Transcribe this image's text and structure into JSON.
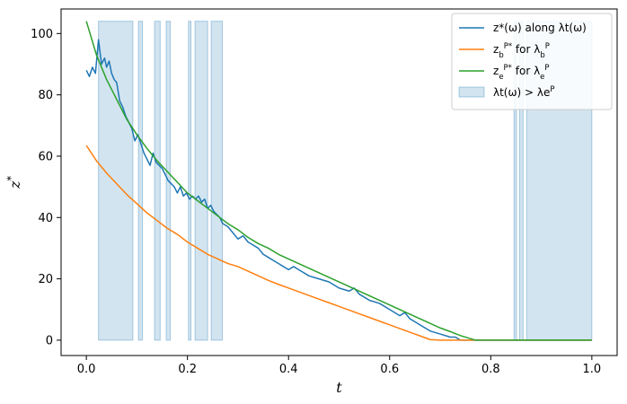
{
  "chart_data": {
    "type": "line",
    "xlabel": "t",
    "ylabel": "z*",
    "xlim": [
      -0.05,
      1.05
    ],
    "ylim": [
      -5,
      108
    ],
    "xticks": [
      "0.0",
      "0.2",
      "0.4",
      "0.6",
      "0.8",
      "1.0"
    ],
    "yticks": [
      "0",
      "20",
      "40",
      "60",
      "80",
      "100"
    ],
    "grid": false,
    "legend_position": "top-right",
    "series": [
      {
        "name": "z*(ω) along λt(ω)",
        "color": "#1f77b4",
        "x": [
          0.0,
          0.006,
          0.012,
          0.018,
          0.024,
          0.03,
          0.036,
          0.04,
          0.045,
          0.05,
          0.055,
          0.06,
          0.066,
          0.072,
          0.078,
          0.084,
          0.09,
          0.096,
          0.102,
          0.108,
          0.114,
          0.12,
          0.126,
          0.132,
          0.138,
          0.144,
          0.15,
          0.156,
          0.162,
          0.168,
          0.174,
          0.18,
          0.186,
          0.192,
          0.198,
          0.204,
          0.21,
          0.216,
          0.222,
          0.228,
          0.234,
          0.24,
          0.246,
          0.252,
          0.258,
          0.264,
          0.27,
          0.28,
          0.29,
          0.3,
          0.31,
          0.32,
          0.33,
          0.34,
          0.35,
          0.36,
          0.37,
          0.38,
          0.39,
          0.4,
          0.41,
          0.42,
          0.43,
          0.44,
          0.46,
          0.48,
          0.5,
          0.52,
          0.53,
          0.54,
          0.56,
          0.58,
          0.6,
          0.62,
          0.63,
          0.64,
          0.66,
          0.68,
          0.7,
          0.72,
          0.73,
          0.74,
          0.76,
          0.77,
          0.8,
          0.85,
          0.9,
          0.95,
          1.0
        ],
        "y": [
          88,
          86,
          89,
          87,
          98,
          90,
          92,
          89,
          91,
          87,
          85,
          84,
          78,
          76,
          73,
          71,
          69,
          65,
          67,
          64,
          61,
          59,
          57,
          61,
          58,
          57,
          56,
          54,
          52,
          51,
          50,
          48,
          50,
          47,
          48,
          46,
          47,
          46,
          47,
          45,
          46,
          43,
          44,
          42,
          41,
          40,
          38,
          37,
          35,
          33,
          34,
          32,
          31,
          30,
          28,
          27,
          26,
          25,
          24,
          23,
          24,
          23,
          22,
          21,
          20,
          19,
          17,
          16,
          17,
          15,
          13,
          12,
          10,
          8,
          9,
          7,
          5,
          3,
          2,
          1,
          1,
          0,
          0,
          0,
          0,
          0,
          0,
          0,
          0
        ]
      },
      {
        "name": "z_b^P* for λ_b^P",
        "color": "#ff7f0e",
        "x": [
          0.0,
          0.02,
          0.04,
          0.06,
          0.08,
          0.1,
          0.12,
          0.14,
          0.16,
          0.18,
          0.2,
          0.22,
          0.24,
          0.26,
          0.28,
          0.3,
          0.32,
          0.34,
          0.36,
          0.38,
          0.4,
          0.42,
          0.44,
          0.46,
          0.48,
          0.5,
          0.52,
          0.54,
          0.56,
          0.58,
          0.6,
          0.62,
          0.64,
          0.66,
          0.68,
          0.7,
          0.71,
          0.72,
          0.74,
          0.76,
          0.8,
          0.9,
          1.0
        ],
        "y": [
          63.5,
          58.5,
          54.5,
          51,
          47.5,
          44.5,
          41.5,
          39,
          36.5,
          34.5,
          32,
          30,
          28,
          26.5,
          25,
          24,
          22.5,
          21,
          19.5,
          18.2,
          17,
          15.8,
          14.6,
          13.4,
          12.2,
          11,
          9.8,
          8.6,
          7.4,
          6.2,
          5,
          3.8,
          2.6,
          1.4,
          0.2,
          0,
          0,
          0,
          0,
          0,
          0,
          0,
          0
        ]
      },
      {
        "name": "z_e^P* for λ_e^P",
        "color": "#2ca02c",
        "x": [
          0.0,
          0.02,
          0.04,
          0.06,
          0.08,
          0.1,
          0.12,
          0.14,
          0.16,
          0.18,
          0.2,
          0.22,
          0.24,
          0.26,
          0.28,
          0.3,
          0.32,
          0.34,
          0.36,
          0.38,
          0.4,
          0.42,
          0.44,
          0.46,
          0.48,
          0.5,
          0.52,
          0.54,
          0.56,
          0.58,
          0.6,
          0.62,
          0.64,
          0.66,
          0.68,
          0.7,
          0.72,
          0.74,
          0.76,
          0.77,
          0.8,
          0.9,
          1.0
        ],
        "y": [
          104,
          93,
          85,
          78.5,
          72,
          67,
          62.5,
          58.5,
          55,
          51.5,
          48,
          45.5,
          43,
          40.5,
          38,
          36,
          33.5,
          31.5,
          30,
          28,
          26.5,
          25,
          23.5,
          22,
          20.5,
          19,
          17.5,
          16,
          14.5,
          13,
          11.5,
          10,
          8.5,
          7,
          5.5,
          4,
          2.8,
          1.5,
          0.5,
          0,
          0,
          0,
          0
        ]
      }
    ],
    "shaded_regions": {
      "name": "λt(ω) > λe^P",
      "color": "#1f77b4",
      "alpha": 0.2,
      "intervals": [
        [
          0.024,
          0.092
        ],
        [
          0.103,
          0.111
        ],
        [
          0.135,
          0.146
        ],
        [
          0.158,
          0.166
        ],
        [
          0.202,
          0.207
        ],
        [
          0.215,
          0.24
        ],
        [
          0.247,
          0.269
        ],
        [
          0.846,
          0.851
        ],
        [
          0.857,
          0.864
        ],
        [
          0.871,
          1.0
        ]
      ],
      "y_top": 104
    }
  }
}
